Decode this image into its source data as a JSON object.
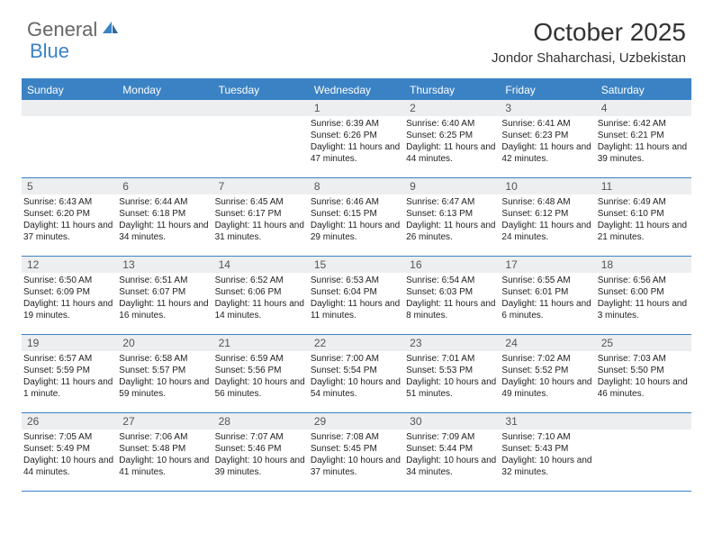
{
  "logo": {
    "part1": "General",
    "part2": "Blue"
  },
  "title": "October 2025",
  "location": "Jondor Shaharchasi, Uzbekistan",
  "colors": {
    "header_bg": "#3b82c4",
    "daynum_bg": "#eceef0",
    "text": "#222222",
    "title_text": "#333333",
    "logo_gray": "#666666"
  },
  "dow": [
    "Sunday",
    "Monday",
    "Tuesday",
    "Wednesday",
    "Thursday",
    "Friday",
    "Saturday"
  ],
  "weeks": [
    [
      {
        "n": "",
        "sr": "",
        "ss": "",
        "dl": ""
      },
      {
        "n": "",
        "sr": "",
        "ss": "",
        "dl": ""
      },
      {
        "n": "",
        "sr": "",
        "ss": "",
        "dl": ""
      },
      {
        "n": "1",
        "sr": "Sunrise: 6:39 AM",
        "ss": "Sunset: 6:26 PM",
        "dl": "Daylight: 11 hours and 47 minutes."
      },
      {
        "n": "2",
        "sr": "Sunrise: 6:40 AM",
        "ss": "Sunset: 6:25 PM",
        "dl": "Daylight: 11 hours and 44 minutes."
      },
      {
        "n": "3",
        "sr": "Sunrise: 6:41 AM",
        "ss": "Sunset: 6:23 PM",
        "dl": "Daylight: 11 hours and 42 minutes."
      },
      {
        "n": "4",
        "sr": "Sunrise: 6:42 AM",
        "ss": "Sunset: 6:21 PM",
        "dl": "Daylight: 11 hours and 39 minutes."
      }
    ],
    [
      {
        "n": "5",
        "sr": "Sunrise: 6:43 AM",
        "ss": "Sunset: 6:20 PM",
        "dl": "Daylight: 11 hours and 37 minutes."
      },
      {
        "n": "6",
        "sr": "Sunrise: 6:44 AM",
        "ss": "Sunset: 6:18 PM",
        "dl": "Daylight: 11 hours and 34 minutes."
      },
      {
        "n": "7",
        "sr": "Sunrise: 6:45 AM",
        "ss": "Sunset: 6:17 PM",
        "dl": "Daylight: 11 hours and 31 minutes."
      },
      {
        "n": "8",
        "sr": "Sunrise: 6:46 AM",
        "ss": "Sunset: 6:15 PM",
        "dl": "Daylight: 11 hours and 29 minutes."
      },
      {
        "n": "9",
        "sr": "Sunrise: 6:47 AM",
        "ss": "Sunset: 6:13 PM",
        "dl": "Daylight: 11 hours and 26 minutes."
      },
      {
        "n": "10",
        "sr": "Sunrise: 6:48 AM",
        "ss": "Sunset: 6:12 PM",
        "dl": "Daylight: 11 hours and 24 minutes."
      },
      {
        "n": "11",
        "sr": "Sunrise: 6:49 AM",
        "ss": "Sunset: 6:10 PM",
        "dl": "Daylight: 11 hours and 21 minutes."
      }
    ],
    [
      {
        "n": "12",
        "sr": "Sunrise: 6:50 AM",
        "ss": "Sunset: 6:09 PM",
        "dl": "Daylight: 11 hours and 19 minutes."
      },
      {
        "n": "13",
        "sr": "Sunrise: 6:51 AM",
        "ss": "Sunset: 6:07 PM",
        "dl": "Daylight: 11 hours and 16 minutes."
      },
      {
        "n": "14",
        "sr": "Sunrise: 6:52 AM",
        "ss": "Sunset: 6:06 PM",
        "dl": "Daylight: 11 hours and 14 minutes."
      },
      {
        "n": "15",
        "sr": "Sunrise: 6:53 AM",
        "ss": "Sunset: 6:04 PM",
        "dl": "Daylight: 11 hours and 11 minutes."
      },
      {
        "n": "16",
        "sr": "Sunrise: 6:54 AM",
        "ss": "Sunset: 6:03 PM",
        "dl": "Daylight: 11 hours and 8 minutes."
      },
      {
        "n": "17",
        "sr": "Sunrise: 6:55 AM",
        "ss": "Sunset: 6:01 PM",
        "dl": "Daylight: 11 hours and 6 minutes."
      },
      {
        "n": "18",
        "sr": "Sunrise: 6:56 AM",
        "ss": "Sunset: 6:00 PM",
        "dl": "Daylight: 11 hours and 3 minutes."
      }
    ],
    [
      {
        "n": "19",
        "sr": "Sunrise: 6:57 AM",
        "ss": "Sunset: 5:59 PM",
        "dl": "Daylight: 11 hours and 1 minute."
      },
      {
        "n": "20",
        "sr": "Sunrise: 6:58 AM",
        "ss": "Sunset: 5:57 PM",
        "dl": "Daylight: 10 hours and 59 minutes."
      },
      {
        "n": "21",
        "sr": "Sunrise: 6:59 AM",
        "ss": "Sunset: 5:56 PM",
        "dl": "Daylight: 10 hours and 56 minutes."
      },
      {
        "n": "22",
        "sr": "Sunrise: 7:00 AM",
        "ss": "Sunset: 5:54 PM",
        "dl": "Daylight: 10 hours and 54 minutes."
      },
      {
        "n": "23",
        "sr": "Sunrise: 7:01 AM",
        "ss": "Sunset: 5:53 PM",
        "dl": "Daylight: 10 hours and 51 minutes."
      },
      {
        "n": "24",
        "sr": "Sunrise: 7:02 AM",
        "ss": "Sunset: 5:52 PM",
        "dl": "Daylight: 10 hours and 49 minutes."
      },
      {
        "n": "25",
        "sr": "Sunrise: 7:03 AM",
        "ss": "Sunset: 5:50 PM",
        "dl": "Daylight: 10 hours and 46 minutes."
      }
    ],
    [
      {
        "n": "26",
        "sr": "Sunrise: 7:05 AM",
        "ss": "Sunset: 5:49 PM",
        "dl": "Daylight: 10 hours and 44 minutes."
      },
      {
        "n": "27",
        "sr": "Sunrise: 7:06 AM",
        "ss": "Sunset: 5:48 PM",
        "dl": "Daylight: 10 hours and 41 minutes."
      },
      {
        "n": "28",
        "sr": "Sunrise: 7:07 AM",
        "ss": "Sunset: 5:46 PM",
        "dl": "Daylight: 10 hours and 39 minutes."
      },
      {
        "n": "29",
        "sr": "Sunrise: 7:08 AM",
        "ss": "Sunset: 5:45 PM",
        "dl": "Daylight: 10 hours and 37 minutes."
      },
      {
        "n": "30",
        "sr": "Sunrise: 7:09 AM",
        "ss": "Sunset: 5:44 PM",
        "dl": "Daylight: 10 hours and 34 minutes."
      },
      {
        "n": "31",
        "sr": "Sunrise: 7:10 AM",
        "ss": "Sunset: 5:43 PM",
        "dl": "Daylight: 10 hours and 32 minutes."
      },
      {
        "n": "",
        "sr": "",
        "ss": "",
        "dl": ""
      }
    ]
  ]
}
